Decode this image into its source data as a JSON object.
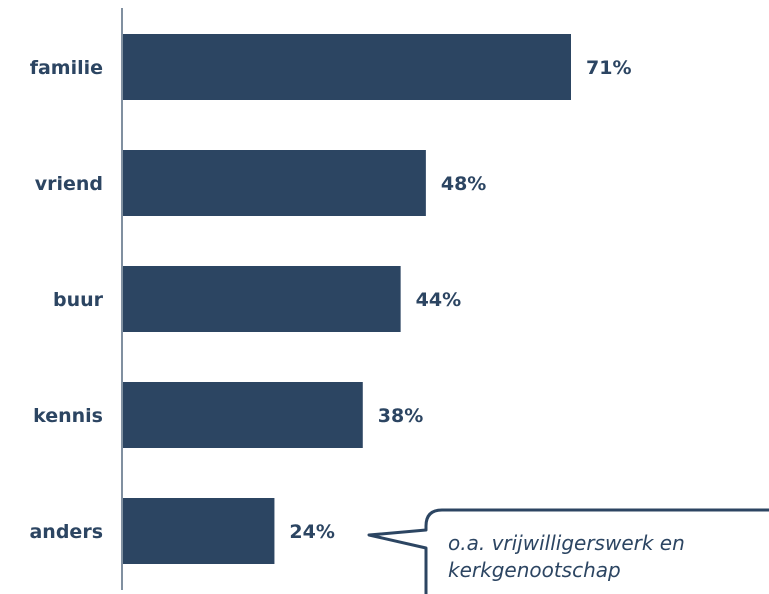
{
  "chart_data": {
    "type": "bar",
    "orientation": "horizontal",
    "categories": [
      "familie",
      "vriend",
      "buur",
      "kennis",
      "anders"
    ],
    "values": [
      71,
      48,
      44,
      38,
      24
    ],
    "value_labels": [
      "71%",
      "48%",
      "44%",
      "38%",
      "24%"
    ],
    "unit": "%",
    "xlim": [
      0,
      100
    ],
    "grid": false,
    "legend": "none",
    "bar_color": "#2c4562",
    "text_color": "#2c4562",
    "annotation": {
      "target_category": "anders",
      "lines": [
        "o.a. vrijwilligerswerk en",
        "kerkgenootschap"
      ]
    }
  }
}
